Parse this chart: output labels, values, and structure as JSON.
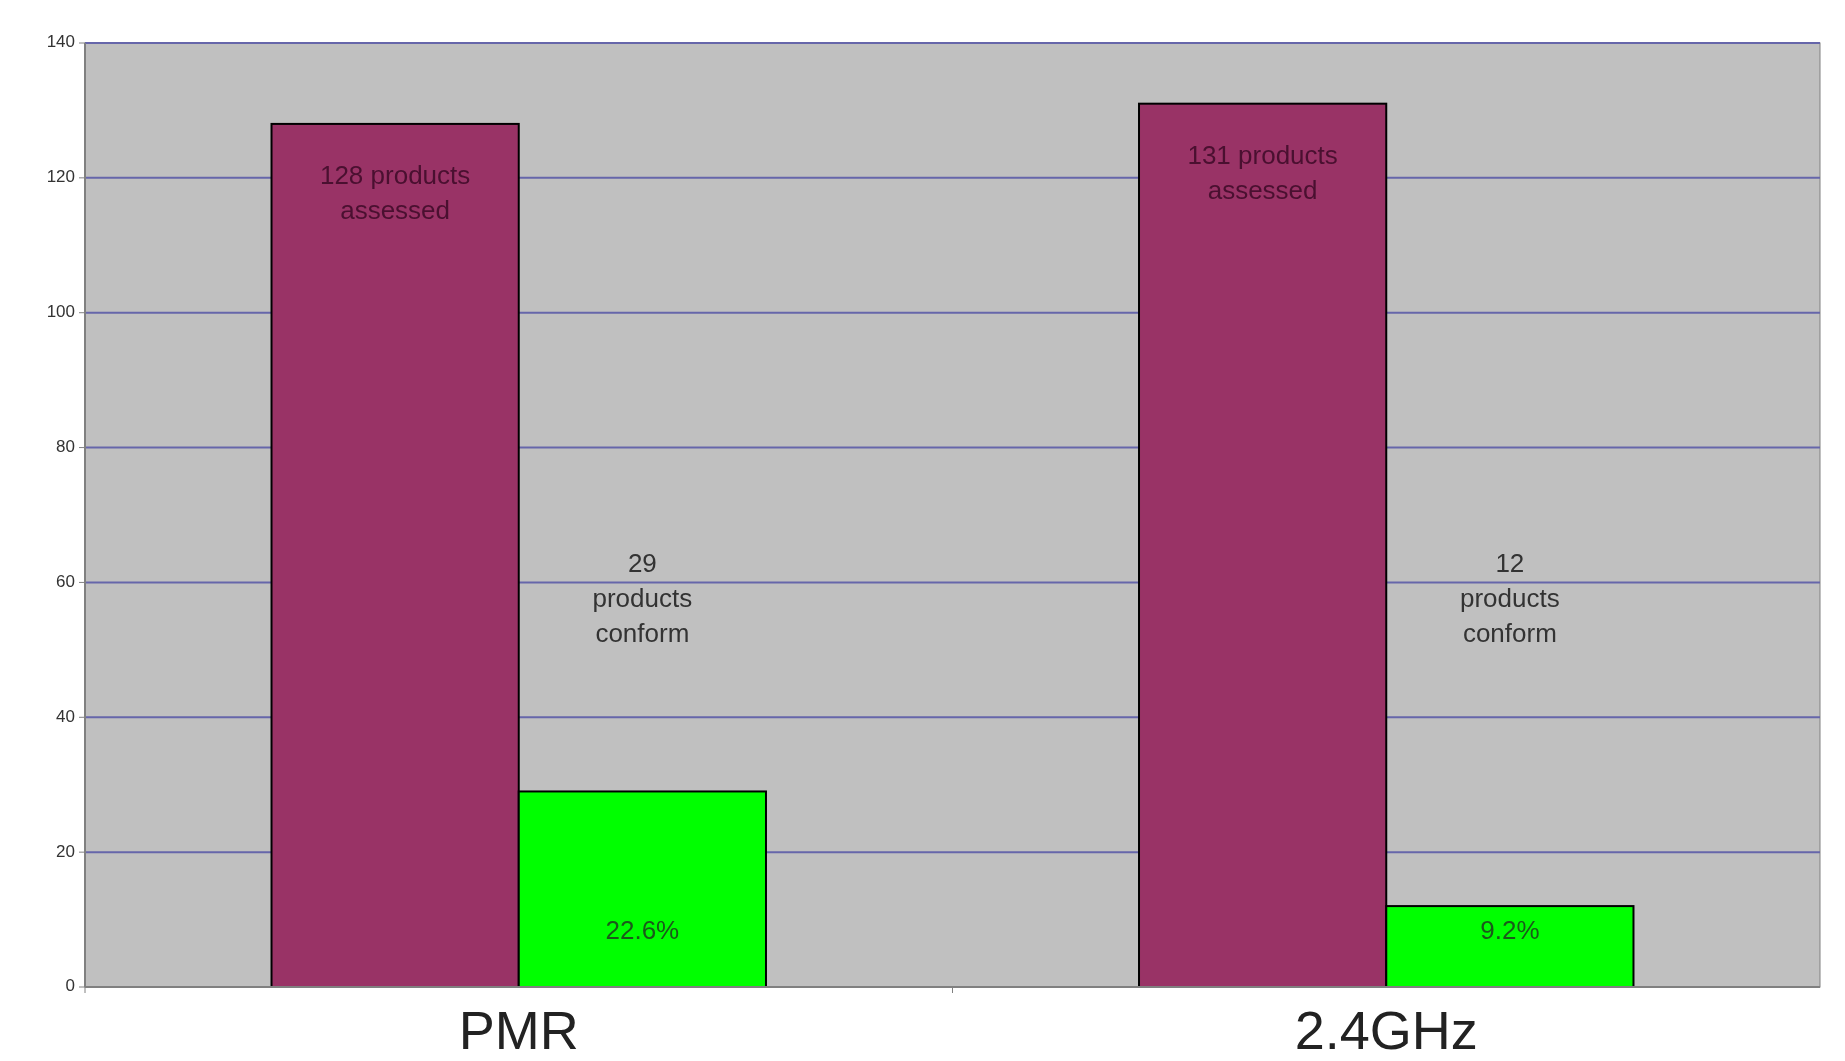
{
  "chart_data": {
    "type": "bar",
    "categories": [
      "PMR",
      "2.4GHz"
    ],
    "series": [
      {
        "color": "#993366",
        "values": [
          128,
          131
        ],
        "value_labels": [
          "128 products assessed",
          "131 products assessed"
        ]
      },
      {
        "color": "#00ff00",
        "values": [
          29,
          12
        ]
      }
    ],
    "ylim": [
      0,
      140
    ],
    "yticks": [
      0,
      20,
      40,
      60,
      80,
      100,
      120,
      140
    ],
    "grid": "y",
    "annotations": [
      "29 products conform",
      "12 products conform",
      "22.6%",
      "9.2%"
    ]
  }
}
